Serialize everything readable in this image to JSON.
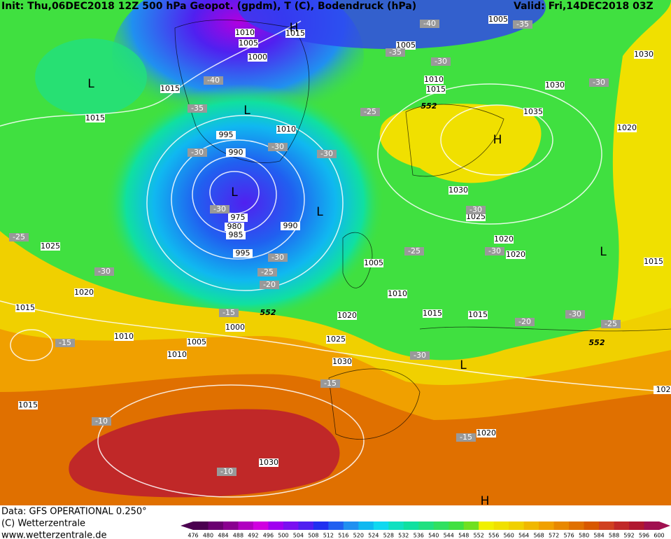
{
  "header": {
    "init": "Init: Thu,06DEC2018 12Z 500 hPa Geopot. (gpdm), T (C), Bodendruck (hPa)",
    "valid": "Valid: Fri,14DEC2018 03Z"
  },
  "footer": {
    "data": "Data: GFS OPERATIONAL 0.250°",
    "copyright": "(C) Wetterzentrale",
    "url": "www.wetterzentrale.de"
  },
  "scale": {
    "values": [
      476,
      480,
      484,
      488,
      492,
      496,
      500,
      504,
      508,
      512,
      516,
      520,
      524,
      528,
      532,
      536,
      540,
      544,
      548,
      552,
      556,
      560,
      564,
      568,
      572,
      576,
      580,
      584,
      588,
      592,
      596,
      600
    ],
    "colors": [
      "#4b0050",
      "#6a0070",
      "#8a0090",
      "#b000c0",
      "#d000e0",
      "#a000f0",
      "#7a10f0",
      "#5020f0",
      "#2030f0",
      "#2060f0",
      "#2090f0",
      "#10b8f0",
      "#10d8f0",
      "#10e0c0",
      "#10e0a0",
      "#20e080",
      "#30e060",
      "#40e040",
      "#70e020",
      "#f0f000",
      "#f0e000",
      "#f0d000",
      "#f0b800",
      "#f0a000",
      "#e88800",
      "#e07000",
      "#d85800",
      "#d04020",
      "#c02828",
      "#b01830",
      "#a01050"
    ]
  },
  "map_labels": {
    "isobars": [
      "1010",
      "1005",
      "1000",
      "1015",
      "1005",
      "1005",
      "1030",
      "1015",
      "1010",
      "1015",
      "1030",
      "1015",
      "1035",
      "1020",
      "1010",
      "995",
      "990",
      "975",
      "980",
      "985",
      "990",
      "1030",
      "1025",
      "1020",
      "1020",
      "995",
      "1005",
      "1025",
      "1020",
      "1015",
      "1010",
      "1015",
      "1015",
      "1020",
      "1000",
      "1010",
      "1005",
      "1025",
      "1010",
      "1030",
      "1015",
      "1020",
      "1030",
      "1015",
      "102"
    ],
    "temperatures": [
      "-40",
      "-35",
      "-35",
      "-30",
      "-40",
      "-35",
      "-25",
      "-30",
      "-30",
      "-30",
      "-30",
      "-30",
      "-25",
      "-25",
      "-30",
      "-30",
      "-30",
      "-25",
      "-20",
      "-15",
      "-20",
      "-30",
      "-25",
      "-15",
      "-30",
      "-15",
      "-10",
      "-15",
      "-10",
      "-30"
    ],
    "highs_lows": [
      "L",
      "H",
      "L",
      "L",
      "L",
      "H",
      "L",
      "L",
      "H"
    ],
    "heights": [
      "552",
      "552",
      "552"
    ]
  }
}
